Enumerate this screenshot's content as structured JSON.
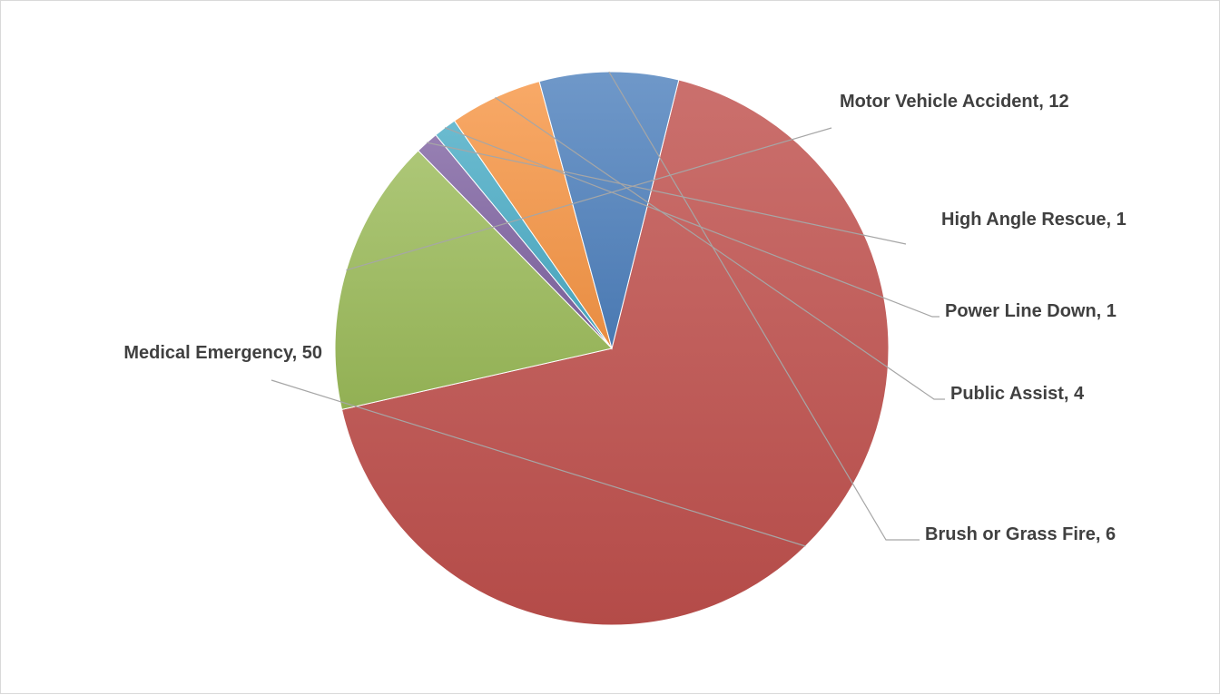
{
  "chart_data": {
    "type": "pie",
    "title": "",
    "categories": [
      "Medical Emergency",
      "Motor Vehicle Accident",
      "High Angle Rescue",
      "Power Line Down",
      "Public Assist",
      "Brush or Grass Fire"
    ],
    "values": [
      50,
      12,
      1,
      1,
      4,
      6
    ],
    "labels": [
      "Medical Emergency, 50",
      "Motor Vehicle Accident, 12",
      "High Angle Rescue, 1",
      "Power Line Down, 1",
      "Public Assist, 4",
      "Brush or Grass Fire, 6"
    ],
    "colors": [
      "#c0504d",
      "#9bbb59",
      "#8064a2",
      "#4bacc6",
      "#f79646",
      "#4f81bd"
    ],
    "legend": "none",
    "label_position": "outside-with-leader-lines"
  }
}
